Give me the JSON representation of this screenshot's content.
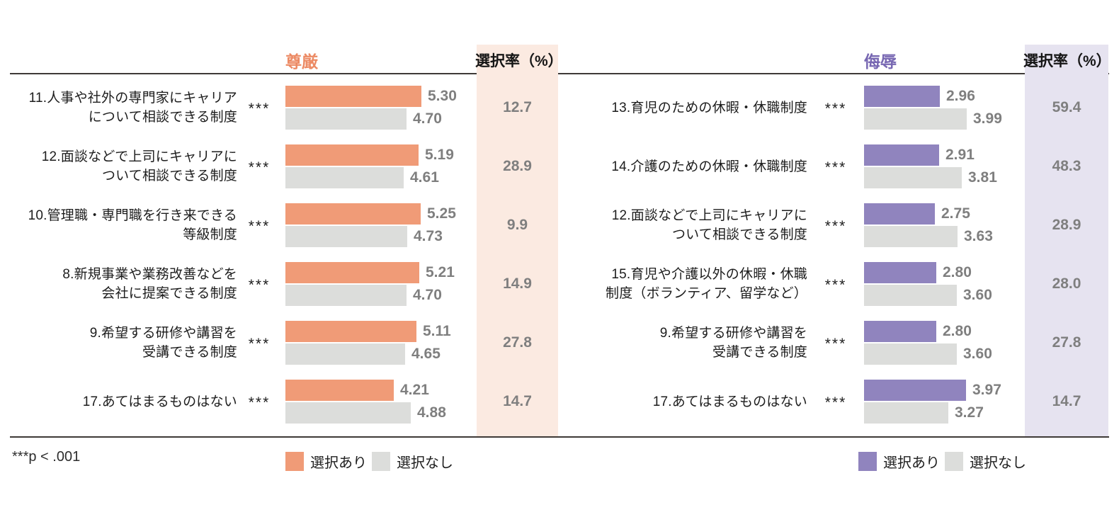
{
  "footnote": "***p < .001",
  "colors": {
    "dignity_bar": "#F09B77",
    "dignity_header": "#EC8A64",
    "dignity_band_bg": "#FBEAE1",
    "insult_bar": "#9084BE",
    "insult_header": "#7767B2",
    "insult_band_bg": "#E6E3F0",
    "gray_bar": "#DCDDDB",
    "value_text": "#7F7F7F",
    "rule": "#3E3A37"
  },
  "chart_data": [
    {
      "type": "bar",
      "title": "尊厳",
      "rate_column_header": "選択率（%）",
      "legend": [
        "選択あり",
        "選択なし"
      ],
      "legend_position": "bottom",
      "orientation": "horizontal",
      "xlim": [
        0,
        6
      ],
      "categories": [
        [
          "11.人事や社外の専門家にキャリア",
          "について相談できる制度"
        ],
        [
          "12.面談などで上司にキャリアに",
          "ついて相談できる制度"
        ],
        [
          "10.管理職・専門職を行き来できる",
          "等級制度"
        ],
        [
          "8.新規事業や業務改善などを",
          "会社に提案できる制度"
        ],
        [
          "9.希望する研修や講習を",
          "受講できる制度"
        ],
        [
          "17.あてはまるものはない"
        ]
      ],
      "series": [
        {
          "name": "選択あり",
          "values": [
            5.3,
            5.19,
            5.25,
            5.21,
            5.11,
            4.21
          ]
        },
        {
          "name": "選択なし",
          "values": [
            4.7,
            4.61,
            4.73,
            4.7,
            4.65,
            4.88
          ]
        }
      ],
      "selection_rates": [
        12.7,
        28.9,
        9.9,
        14.9,
        27.8,
        14.7
      ],
      "significance": [
        "***",
        "***",
        "***",
        "***",
        "***",
        "***"
      ]
    },
    {
      "type": "bar",
      "title": "侮辱",
      "rate_column_header": "選択率（%）",
      "legend": [
        "選択あり",
        "選択なし"
      ],
      "legend_position": "bottom",
      "orientation": "horizontal",
      "xlim": [
        0,
        6
      ],
      "categories": [
        [
          "13.育児のための休暇・休職制度"
        ],
        [
          "14.介護のための休暇・休職制度"
        ],
        [
          "12.面談などで上司にキャリアに",
          "ついて相談できる制度"
        ],
        [
          "15.育児や介護以外の休暇・休職",
          "制度（ボランティア、留学など）"
        ],
        [
          "9.希望する研修や講習を",
          "受講できる制度"
        ],
        [
          "17.あてはまるものはない"
        ]
      ],
      "series": [
        {
          "name": "選択あり",
          "values": [
            2.96,
            2.91,
            2.75,
            2.8,
            2.8,
            3.97
          ]
        },
        {
          "name": "選択なし",
          "values": [
            3.99,
            3.81,
            3.63,
            3.6,
            3.6,
            3.27
          ]
        }
      ],
      "selection_rates": [
        59.4,
        48.3,
        28.9,
        28.0,
        27.8,
        14.7
      ],
      "significance": [
        "***",
        "***",
        "***",
        "***",
        "***",
        "***"
      ]
    }
  ]
}
